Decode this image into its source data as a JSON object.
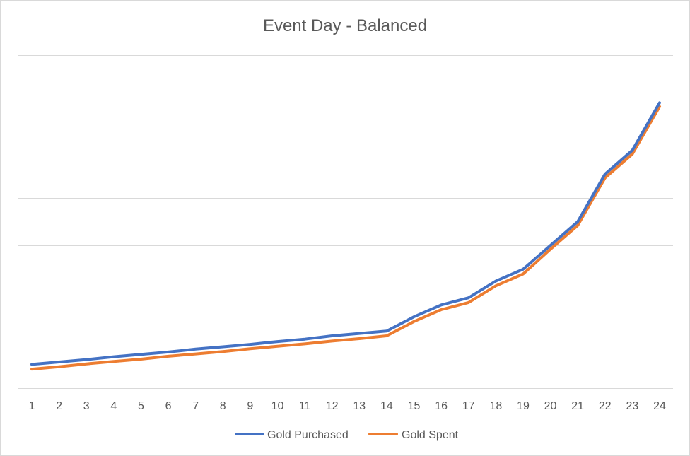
{
  "chart_data": {
    "type": "line",
    "title": "Event Day - Balanced",
    "xlabel": "",
    "ylabel": "",
    "categories": [
      "1",
      "2",
      "3",
      "4",
      "5",
      "6",
      "7",
      "8",
      "9",
      "10",
      "11",
      "12",
      "13",
      "14",
      "15",
      "16",
      "17",
      "18",
      "19",
      "20",
      "21",
      "22",
      "23",
      "24"
    ],
    "series": [
      {
        "name": "Gold Purchased",
        "color": "#4472C4",
        "values": [
          0.5,
          0.55,
          0.6,
          0.66,
          0.71,
          0.76,
          0.82,
          0.87,
          0.92,
          0.98,
          1.03,
          1.1,
          1.15,
          1.2,
          1.5,
          1.75,
          1.9,
          2.25,
          2.5,
          3.0,
          3.5,
          4.5,
          5.0,
          6.0
        ],
        "line_width": 4
      },
      {
        "name": "Gold Spent",
        "color": "#ED7D31",
        "values": [
          0.4,
          0.45,
          0.51,
          0.56,
          0.61,
          0.67,
          0.72,
          0.77,
          0.83,
          0.88,
          0.93,
          0.99,
          1.04,
          1.1,
          1.4,
          1.65,
          1.8,
          2.15,
          2.4,
          2.92,
          3.42,
          4.42,
          4.92,
          5.92
        ],
        "line_width": 4
      }
    ],
    "ylim": [
      0,
      7
    ],
    "y_gridlines": [
      0,
      1,
      2,
      3,
      4,
      5,
      6,
      7
    ],
    "grid": true,
    "y_tick_labels_visible": false,
    "legend": "bottom",
    "gridline_color": "#d9d9d9"
  }
}
